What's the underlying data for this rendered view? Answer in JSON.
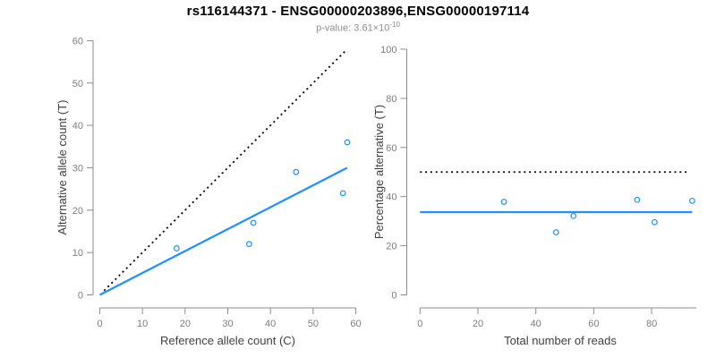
{
  "header": {
    "title": "rs116144371 - ENSG00000203896,ENSG00000197114",
    "pvalue_label": "p-value:",
    "pvalue_base": "3.61×10",
    "pvalue_exponent": "-10"
  },
  "colors": {
    "accent_blue": "#1E90FF",
    "axis_gray": "#8c8c8c",
    "tick_label_gray": "#7e7e7e",
    "axis_title_gray": "#404040",
    "subtitle_gray": "#8e8e8e",
    "reference_black": "#000000"
  },
  "chart_data": [
    {
      "type": "scatter",
      "panel": "left",
      "xlabel": "Reference allele count (C)",
      "ylabel": "Alternative allele count (T)",
      "xlim": [
        0,
        60
      ],
      "ylim": [
        0,
        60
      ],
      "xticks": [
        0,
        10,
        20,
        30,
        40,
        50,
        60
      ],
      "yticks": [
        0,
        10,
        20,
        30,
        40,
        50,
        60
      ],
      "grid": false,
      "legend": false,
      "point_color": "#1E90FF",
      "points": [
        [
          18,
          11
        ],
        [
          35,
          12
        ],
        [
          36,
          17
        ],
        [
          46,
          29
        ],
        [
          57,
          24
        ],
        [
          58,
          36
        ]
      ],
      "lines": [
        {
          "name": "identity-line",
          "style": "dotted",
          "color": "#000000",
          "x1": 1,
          "y1": 1,
          "x2": 57.5,
          "y2": 57.5
        },
        {
          "name": "fit-line",
          "style": "solid",
          "color": "#1E90FF",
          "x1": 0,
          "y1": 0,
          "x2": 58,
          "y2": 30
        }
      ]
    },
    {
      "type": "scatter",
      "panel": "right",
      "xlabel": "Total number of reads",
      "ylabel": "Percentage alternative (T)",
      "xlim": [
        0,
        95.5
      ],
      "ylim": [
        0,
        100
      ],
      "xticks": [
        0,
        20,
        40,
        60,
        80
      ],
      "yticks": [
        0,
        20,
        40,
        60,
        80,
        100
      ],
      "grid": false,
      "legend": false,
      "point_color": "#1E90FF",
      "points": [
        [
          29,
          37.9
        ],
        [
          47,
          25.5
        ],
        [
          53,
          32.1
        ],
        [
          75,
          38.7
        ],
        [
          81,
          29.6
        ],
        [
          94,
          38.3
        ]
      ],
      "lines": [
        {
          "name": "fifty-percent-line",
          "style": "dotted",
          "color": "#000000",
          "x1": 0,
          "y1": 50,
          "x2": 92.5,
          "y2": 50
        },
        {
          "name": "mean-percentage-line",
          "style": "solid",
          "color": "#1E90FF",
          "x1": 0,
          "y1": 33.7,
          "x2": 94,
          "y2": 33.7
        }
      ]
    }
  ]
}
